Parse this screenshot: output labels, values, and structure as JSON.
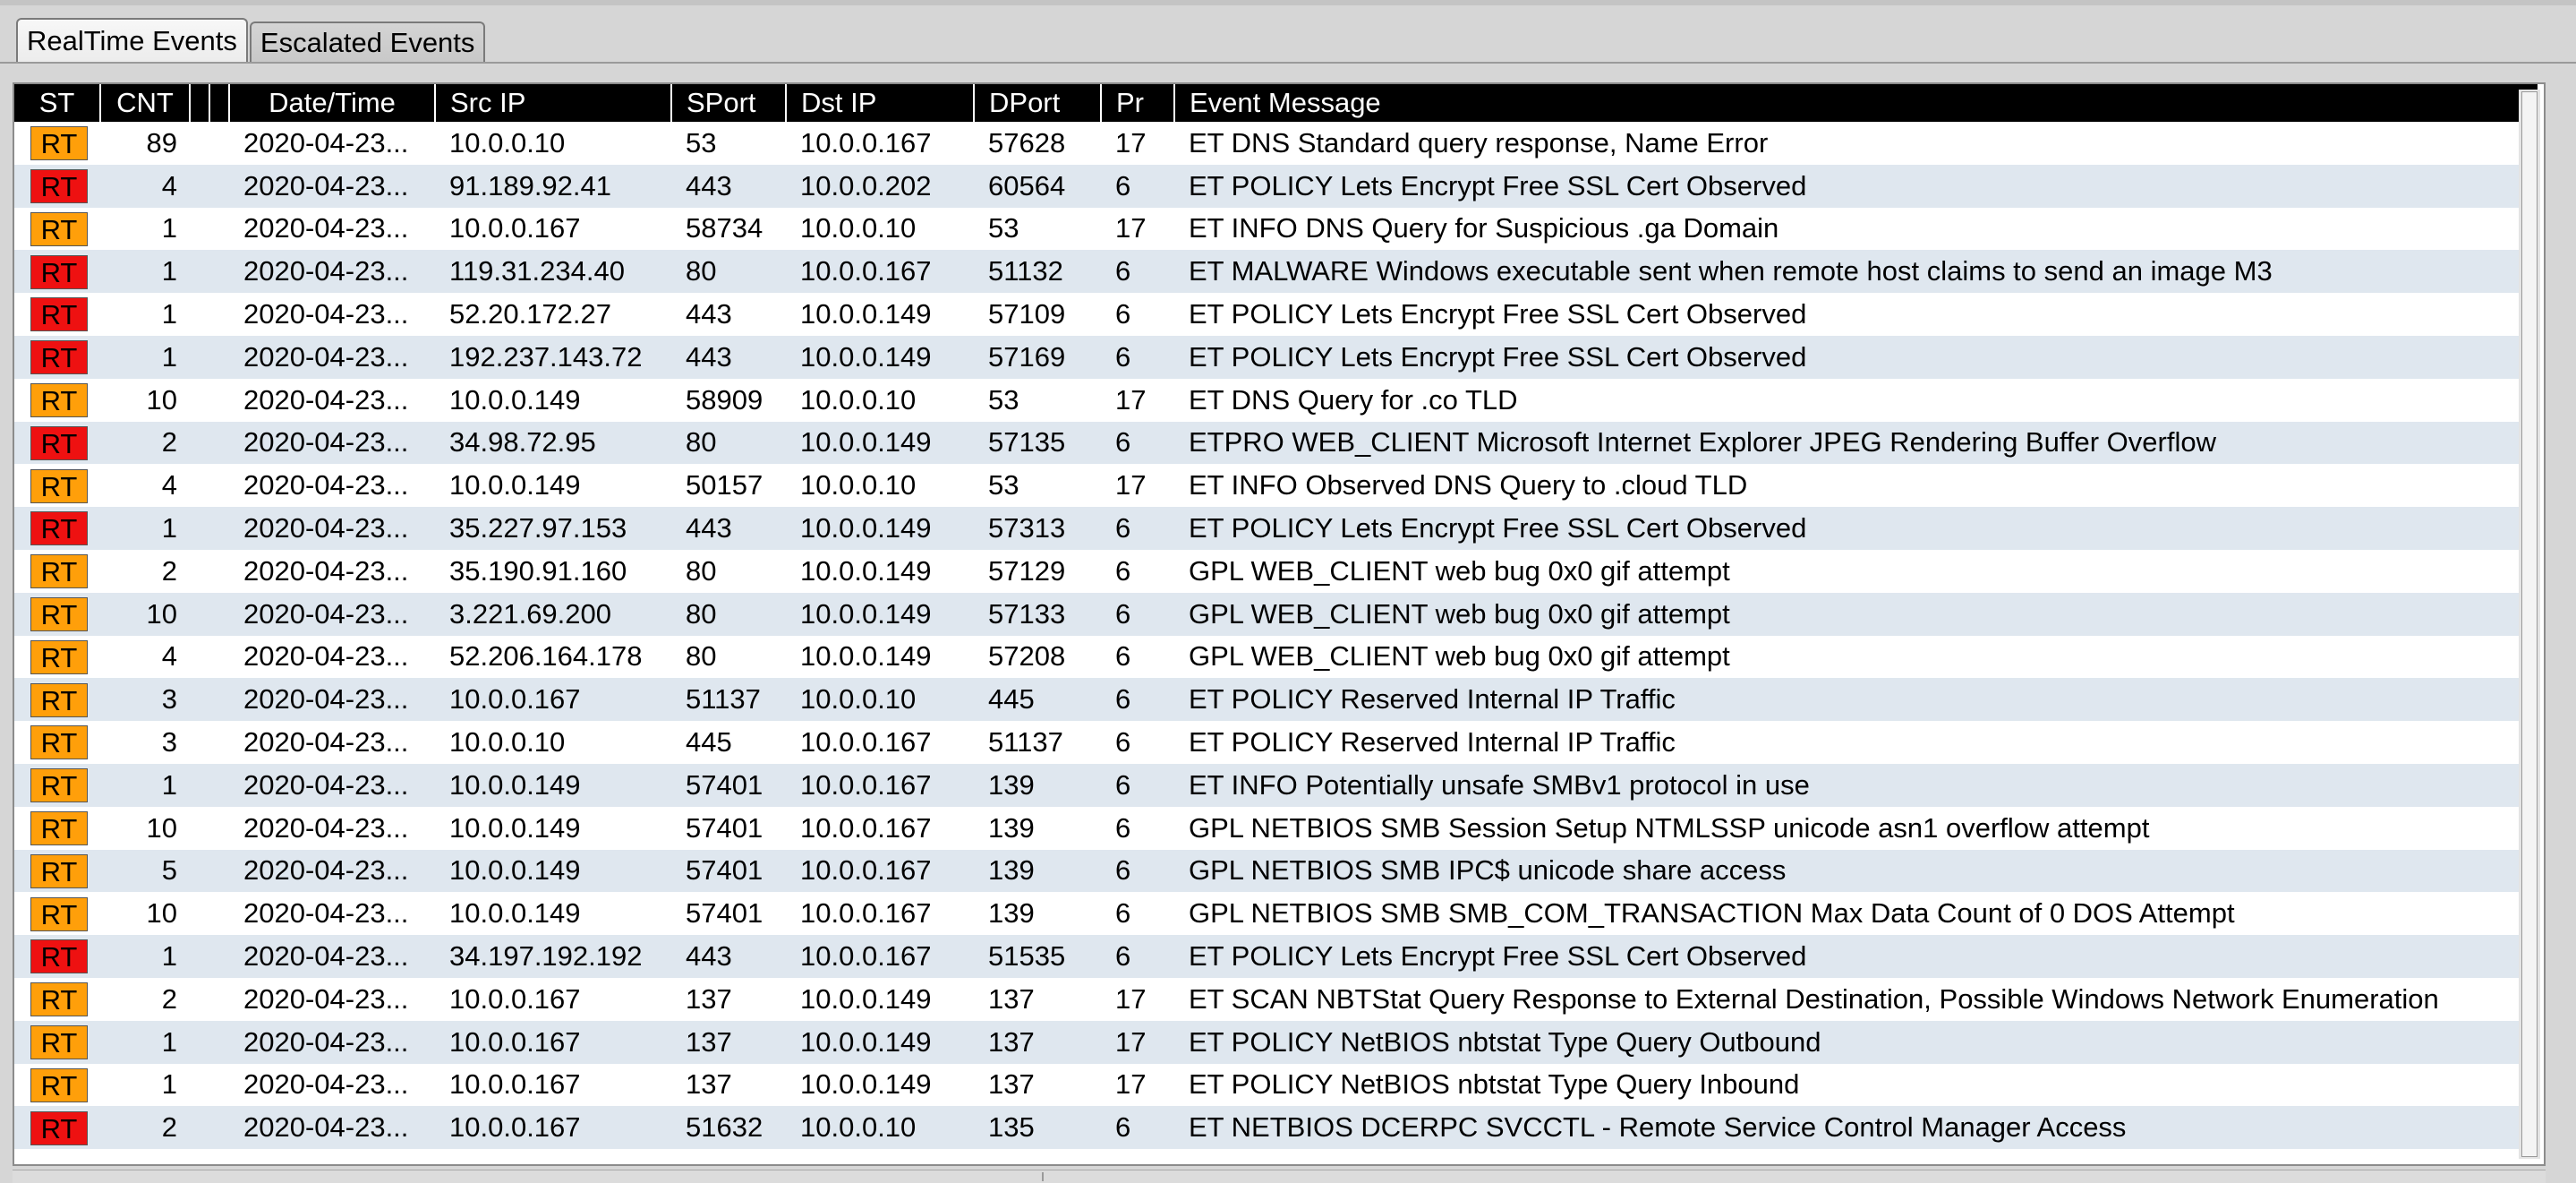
{
  "tabs": [
    {
      "label": "RealTime Events",
      "active": true
    },
    {
      "label": "Escalated Events",
      "active": false
    }
  ],
  "colors": {
    "header_bg": "#000000",
    "row_alt_bg": "#dfe7ef",
    "status_orange": "#ff9f0a",
    "status_red": "#ee1111"
  },
  "table": {
    "columns": [
      "ST",
      "CNT",
      "",
      "",
      "Date/Time",
      "Src IP",
      "SPort",
      "Dst IP",
      "DPort",
      "Pr",
      "Event Message"
    ],
    "rows": [
      {
        "st": "RT",
        "color": "orange",
        "cnt": "89",
        "dt": "2020-04-23...",
        "src": "10.0.0.10",
        "sport": "53",
        "dst": "10.0.0.167",
        "dport": "57628",
        "pr": "17",
        "msg": "ET DNS Standard query response, Name Error"
      },
      {
        "st": "RT",
        "color": "red",
        "cnt": "4",
        "dt": "2020-04-23...",
        "src": "91.189.92.41",
        "sport": "443",
        "dst": "10.0.0.202",
        "dport": "60564",
        "pr": "6",
        "msg": "ET POLICY Lets Encrypt Free SSL Cert Observed"
      },
      {
        "st": "RT",
        "color": "orange",
        "cnt": "1",
        "dt": "2020-04-23...",
        "src": "10.0.0.167",
        "sport": "58734",
        "dst": "10.0.0.10",
        "dport": "53",
        "pr": "17",
        "msg": "ET INFO DNS Query for Suspicious .ga Domain"
      },
      {
        "st": "RT",
        "color": "red",
        "cnt": "1",
        "dt": "2020-04-23...",
        "src": "119.31.234.40",
        "sport": "80",
        "dst": "10.0.0.167",
        "dport": "51132",
        "pr": "6",
        "msg": "ET MALWARE Windows executable sent when remote host claims to send an image M3"
      },
      {
        "st": "RT",
        "color": "red",
        "cnt": "1",
        "dt": "2020-04-23...",
        "src": "52.20.172.27",
        "sport": "443",
        "dst": "10.0.0.149",
        "dport": "57109",
        "pr": "6",
        "msg": "ET POLICY Lets Encrypt Free SSL Cert Observed"
      },
      {
        "st": "RT",
        "color": "red",
        "cnt": "1",
        "dt": "2020-04-23...",
        "src": "192.237.143.72",
        "sport": "443",
        "dst": "10.0.0.149",
        "dport": "57169",
        "pr": "6",
        "msg": "ET POLICY Lets Encrypt Free SSL Cert Observed"
      },
      {
        "st": "RT",
        "color": "orange",
        "cnt": "10",
        "dt": "2020-04-23...",
        "src": "10.0.0.149",
        "sport": "58909",
        "dst": "10.0.0.10",
        "dport": "53",
        "pr": "17",
        "msg": "ET DNS Query for .co TLD"
      },
      {
        "st": "RT",
        "color": "red",
        "cnt": "2",
        "dt": "2020-04-23...",
        "src": "34.98.72.95",
        "sport": "80",
        "dst": "10.0.0.149",
        "dport": "57135",
        "pr": "6",
        "msg": "ETPRO WEB_CLIENT Microsoft Internet Explorer JPEG Rendering Buffer Overflow"
      },
      {
        "st": "RT",
        "color": "orange",
        "cnt": "4",
        "dt": "2020-04-23...",
        "src": "10.0.0.149",
        "sport": "50157",
        "dst": "10.0.0.10",
        "dport": "53",
        "pr": "17",
        "msg": "ET INFO Observed DNS Query to .cloud TLD"
      },
      {
        "st": "RT",
        "color": "red",
        "cnt": "1",
        "dt": "2020-04-23...",
        "src": "35.227.97.153",
        "sport": "443",
        "dst": "10.0.0.149",
        "dport": "57313",
        "pr": "6",
        "msg": "ET POLICY Lets Encrypt Free SSL Cert Observed"
      },
      {
        "st": "RT",
        "color": "orange",
        "cnt": "2",
        "dt": "2020-04-23...",
        "src": "35.190.91.160",
        "sport": "80",
        "dst": "10.0.0.149",
        "dport": "57129",
        "pr": "6",
        "msg": "GPL WEB_CLIENT web bug 0x0 gif attempt"
      },
      {
        "st": "RT",
        "color": "orange",
        "cnt": "10",
        "dt": "2020-04-23...",
        "src": "3.221.69.200",
        "sport": "80",
        "dst": "10.0.0.149",
        "dport": "57133",
        "pr": "6",
        "msg": "GPL WEB_CLIENT web bug 0x0 gif attempt"
      },
      {
        "st": "RT",
        "color": "orange",
        "cnt": "4",
        "dt": "2020-04-23...",
        "src": "52.206.164.178",
        "sport": "80",
        "dst": "10.0.0.149",
        "dport": "57208",
        "pr": "6",
        "msg": "GPL WEB_CLIENT web bug 0x0 gif attempt"
      },
      {
        "st": "RT",
        "color": "orange",
        "cnt": "3",
        "dt": "2020-04-23...",
        "src": "10.0.0.167",
        "sport": "51137",
        "dst": "10.0.0.10",
        "dport": "445",
        "pr": "6",
        "msg": "ET POLICY Reserved Internal IP Traffic"
      },
      {
        "st": "RT",
        "color": "orange",
        "cnt": "3",
        "dt": "2020-04-23...",
        "src": "10.0.0.10",
        "sport": "445",
        "dst": "10.0.0.167",
        "dport": "51137",
        "pr": "6",
        "msg": "ET POLICY Reserved Internal IP Traffic"
      },
      {
        "st": "RT",
        "color": "orange",
        "cnt": "1",
        "dt": "2020-04-23...",
        "src": "10.0.0.149",
        "sport": "57401",
        "dst": "10.0.0.167",
        "dport": "139",
        "pr": "6",
        "msg": "ET INFO Potentially unsafe SMBv1 protocol in use"
      },
      {
        "st": "RT",
        "color": "orange",
        "cnt": "10",
        "dt": "2020-04-23...",
        "src": "10.0.0.149",
        "sport": "57401",
        "dst": "10.0.0.167",
        "dport": "139",
        "pr": "6",
        "msg": "GPL NETBIOS SMB Session Setup NTMLSSP unicode asn1 overflow attempt"
      },
      {
        "st": "RT",
        "color": "orange",
        "cnt": "5",
        "dt": "2020-04-23...",
        "src": "10.0.0.149",
        "sport": "57401",
        "dst": "10.0.0.167",
        "dport": "139",
        "pr": "6",
        "msg": "GPL NETBIOS SMB IPC$ unicode share access"
      },
      {
        "st": "RT",
        "color": "orange",
        "cnt": "10",
        "dt": "2020-04-23...",
        "src": "10.0.0.149",
        "sport": "57401",
        "dst": "10.0.0.167",
        "dport": "139",
        "pr": "6",
        "msg": "GPL NETBIOS SMB SMB_COM_TRANSACTION Max Data Count of 0 DOS Attempt"
      },
      {
        "st": "RT",
        "color": "red",
        "cnt": "1",
        "dt": "2020-04-23...",
        "src": "34.197.192.192",
        "sport": "443",
        "dst": "10.0.0.167",
        "dport": "51535",
        "pr": "6",
        "msg": "ET POLICY Lets Encrypt Free SSL Cert Observed"
      },
      {
        "st": "RT",
        "color": "orange",
        "cnt": "2",
        "dt": "2020-04-23...",
        "src": "10.0.0.167",
        "sport": "137",
        "dst": "10.0.0.149",
        "dport": "137",
        "pr": "17",
        "msg": "ET SCAN NBTStat Query Response to External Destination, Possible Windows Network Enumeration"
      },
      {
        "st": "RT",
        "color": "orange",
        "cnt": "1",
        "dt": "2020-04-23...",
        "src": "10.0.0.167",
        "sport": "137",
        "dst": "10.0.0.149",
        "dport": "137",
        "pr": "17",
        "msg": "ET POLICY NetBIOS nbtstat Type Query Outbound"
      },
      {
        "st": "RT",
        "color": "orange",
        "cnt": "1",
        "dt": "2020-04-23...",
        "src": "10.0.0.167",
        "sport": "137",
        "dst": "10.0.0.149",
        "dport": "137",
        "pr": "17",
        "msg": "ET POLICY NetBIOS nbtstat Type Query Inbound"
      },
      {
        "st": "RT",
        "color": "red",
        "cnt": "2",
        "dt": "2020-04-23...",
        "src": "10.0.0.167",
        "sport": "51632",
        "dst": "10.0.0.10",
        "dport": "135",
        "pr": "6",
        "msg": "ET NETBIOS DCERPC SVCCTL - Remote Service Control Manager Access"
      }
    ]
  }
}
